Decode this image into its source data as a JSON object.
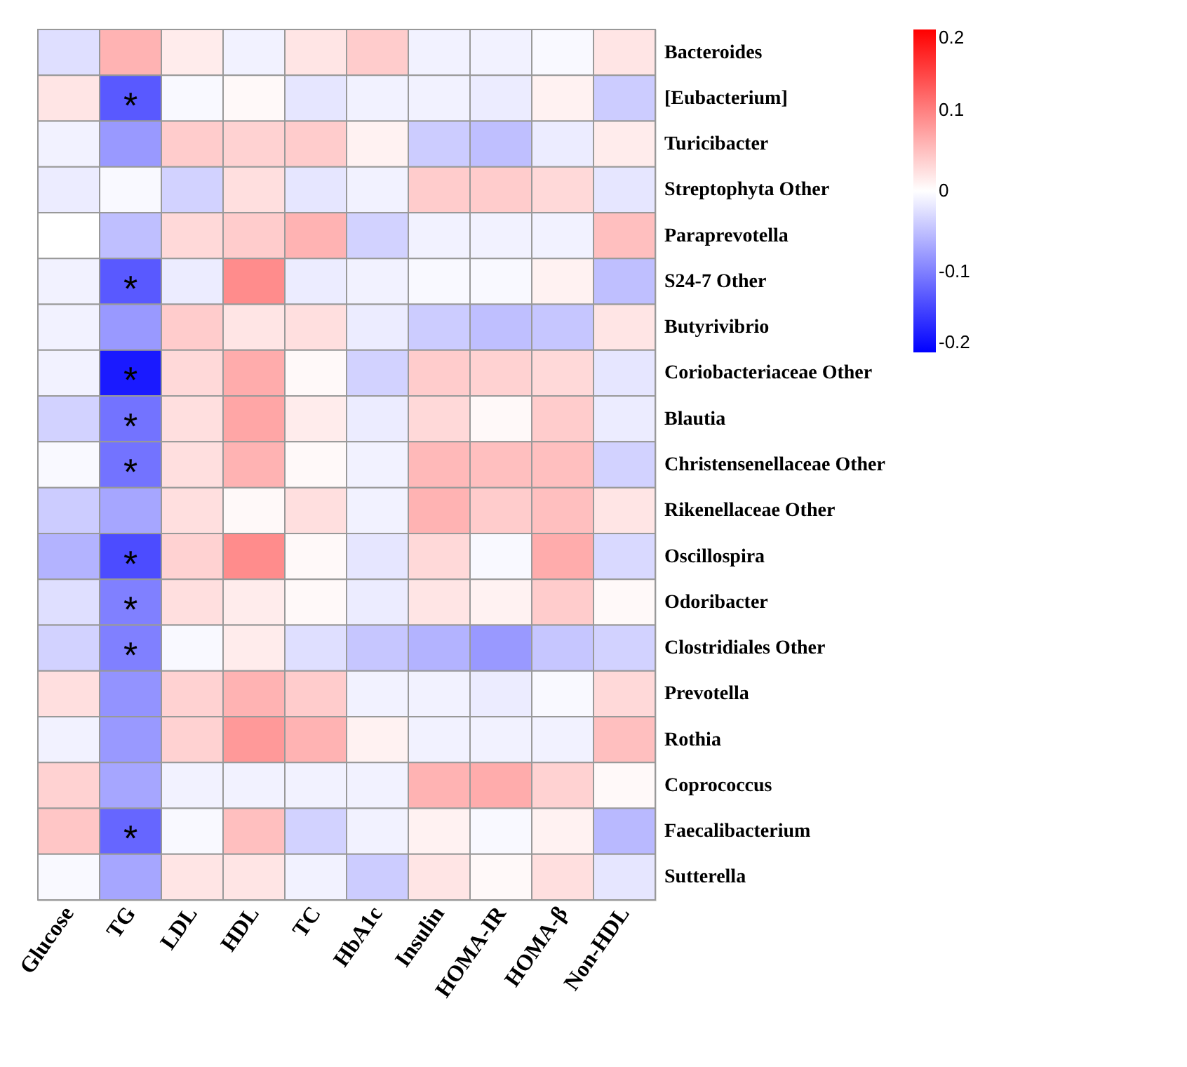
{
  "chart_data": {
    "type": "heatmap",
    "categories": [
      "Glucose",
      "TG",
      "LDL",
      "HDL",
      "TC",
      "HbA1c",
      "Insulin",
      "HOMA-IR",
      "HOMA-β",
      "Non-HDL"
    ],
    "y_categories": [
      "Bacteroides",
      "[Eubacterium]",
      "Turicibacter",
      "Streptophyta Other",
      "Paraprevotella",
      "S24-7 Other",
      "Butyrivibrio",
      "Coriobacteriaceae Other",
      "Blautia",
      "Christensenellaceae Other",
      "Rikenellaceae Other",
      "Oscillospira",
      "Odoribacter",
      "Clostridiales Other",
      "Prevotella",
      "Rothia",
      "Coprococcus",
      "Faecalibacterium",
      "Sutterella"
    ],
    "cells": [
      [
        -0.025,
        0.06,
        0.015,
        -0.01,
        0.02,
        0.04,
        -0.01,
        -0.01,
        -0.005,
        0.02
      ],
      [
        0.02,
        -0.13,
        -0.005,
        0.005,
        -0.02,
        -0.01,
        -0.01,
        -0.015,
        0.01,
        -0.04
      ],
      [
        -0.01,
        -0.08,
        0.04,
        0.035,
        0.04,
        0.01,
        -0.04,
        -0.05,
        -0.015,
        0.015
      ],
      [
        -0.015,
        -0.005,
        -0.035,
        0.025,
        -0.02,
        -0.01,
        0.04,
        0.04,
        0.03,
        -0.02
      ],
      [
        0,
        -0.05,
        0.03,
        0.04,
        0.06,
        -0.035,
        -0.01,
        -0.01,
        -0.01,
        0.05
      ],
      [
        -0.01,
        -0.13,
        -0.015,
        0.09,
        -0.015,
        -0.01,
        -0.005,
        -0.005,
        0.01,
        -0.05
      ],
      [
        -0.01,
        -0.08,
        0.04,
        0.02,
        0.025,
        -0.015,
        -0.04,
        -0.05,
        -0.045,
        0.02
      ],
      [
        -0.01,
        -0.18,
        0.03,
        0.065,
        0.005,
        -0.035,
        0.04,
        0.035,
        0.03,
        -0.02
      ],
      [
        -0.035,
        -0.11,
        0.025,
        0.07,
        0.015,
        -0.015,
        0.03,
        0.005,
        0.04,
        -0.015
      ],
      [
        -0.005,
        -0.11,
        0.025,
        0.06,
        0.005,
        -0.01,
        0.055,
        0.05,
        0.05,
        -0.035
      ],
      [
        -0.04,
        -0.07,
        0.025,
        0.005,
        0.025,
        -0.01,
        0.06,
        0.04,
        0.05,
        0.02
      ],
      [
        -0.06,
        -0.14,
        0.035,
        0.09,
        0.005,
        -0.02,
        0.03,
        -0.005,
        0.065,
        -0.03
      ],
      [
        -0.025,
        -0.1,
        0.025,
        0.015,
        0.005,
        -0.015,
        0.02,
        0.01,
        0.04,
        0.005
      ],
      [
        -0.035,
        -0.1,
        -0.005,
        0.015,
        -0.025,
        -0.045,
        -0.06,
        -0.08,
        -0.045,
        -0.035
      ],
      [
        0.025,
        -0.085,
        0.035,
        0.06,
        0.04,
        -0.01,
        -0.01,
        -0.015,
        -0.005,
        0.03
      ],
      [
        -0.01,
        -0.08,
        0.035,
        0.08,
        0.06,
        0.01,
        -0.01,
        -0.01,
        -0.01,
        0.05
      ],
      [
        0.035,
        -0.07,
        -0.01,
        -0.01,
        -0.01,
        -0.01,
        0.06,
        0.065,
        0.035,
        0.005
      ],
      [
        0.045,
        -0.12,
        -0.005,
        0.05,
        -0.035,
        -0.01,
        0.01,
        -0.005,
        0.01,
        -0.055
      ],
      [
        -0.005,
        -0.07,
        0.02,
        0.02,
        -0.01,
        -0.04,
        0.02,
        0.005,
        0.025,
        -0.02
      ]
    ],
    "cell_labels": [
      [
        null,
        null,
        null,
        null,
        null,
        null,
        null,
        null,
        null,
        null
      ],
      [
        null,
        "*",
        null,
        null,
        null,
        null,
        null,
        null,
        null,
        null
      ],
      [
        null,
        null,
        null,
        null,
        null,
        null,
        null,
        null,
        null,
        null
      ],
      [
        null,
        null,
        null,
        null,
        null,
        null,
        null,
        null,
        null,
        null
      ],
      [
        null,
        null,
        null,
        null,
        null,
        null,
        null,
        null,
        null,
        null
      ],
      [
        null,
        "*",
        null,
        null,
        null,
        null,
        null,
        null,
        null,
        null
      ],
      [
        null,
        null,
        null,
        null,
        null,
        null,
        null,
        null,
        null,
        null
      ],
      [
        null,
        "*",
        null,
        null,
        null,
        null,
        null,
        null,
        null,
        null
      ],
      [
        null,
        "*",
        null,
        null,
        null,
        null,
        null,
        null,
        null,
        null
      ],
      [
        null,
        "*",
        null,
        null,
        null,
        null,
        null,
        null,
        null,
        null
      ],
      [
        null,
        null,
        null,
        null,
        null,
        null,
        null,
        null,
        null,
        null
      ],
      [
        null,
        "*",
        null,
        null,
        null,
        null,
        null,
        null,
        null,
        null
      ],
      [
        null,
        "*",
        null,
        null,
        null,
        null,
        null,
        null,
        null,
        null
      ],
      [
        null,
        "*",
        null,
        null,
        null,
        null,
        null,
        null,
        null,
        null
      ],
      [
        null,
        null,
        null,
        null,
        null,
        null,
        null,
        null,
        null,
        null
      ],
      [
        null,
        null,
        null,
        null,
        null,
        null,
        null,
        null,
        null,
        null
      ],
      [
        null,
        null,
        null,
        null,
        null,
        null,
        null,
        null,
        null,
        null
      ],
      [
        null,
        "*",
        null,
        null,
        null,
        null,
        null,
        null,
        null,
        null
      ],
      [
        null,
        null,
        null,
        null,
        null,
        null,
        null,
        null,
        null,
        null
      ]
    ],
    "colors": [
      "#0000ff",
      "#ffffff",
      "#ff0000"
    ],
    "clim": [
      -0.2,
      0.2
    ],
    "cticks": [
      -0.2,
      -0.1,
      0,
      0.1,
      0.2
    ]
  }
}
